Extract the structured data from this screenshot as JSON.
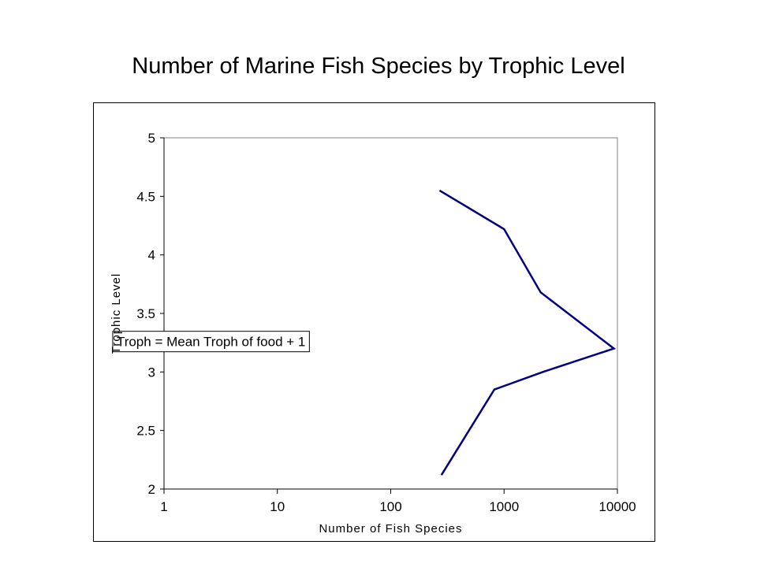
{
  "chart_data": {
    "type": "line",
    "title": "Number of Marine Fish Species by Trophic Level",
    "xlabel": "Number of Fish Species",
    "ylabel": "Trophic Level",
    "xscale": "log",
    "xlim": [
      1,
      10000
    ],
    "ylim": [
      2,
      5
    ],
    "xticks": [
      1,
      10,
      100,
      1000,
      10000
    ],
    "xtick_labels": [
      "1",
      "10",
      "100",
      "1000",
      "10000"
    ],
    "yticks": [
      2,
      2.5,
      3,
      3.5,
      4,
      4.5,
      5
    ],
    "ytick_labels": [
      "2",
      "2.5",
      "3",
      "3.5",
      "4",
      "4.5",
      "5"
    ],
    "grid": false,
    "legend": "none",
    "series": [
      {
        "color": "#000080",
        "points": [
          {
            "x": 280,
            "y": 2.12
          },
          {
            "x": 820,
            "y": 2.85
          },
          {
            "x": 2200,
            "y": 3.0
          },
          {
            "x": 9300,
            "y": 3.2
          },
          {
            "x": 2100,
            "y": 3.68
          },
          {
            "x": 1000,
            "y": 4.22
          },
          {
            "x": 270,
            "y": 4.55
          }
        ]
      }
    ],
    "annotations": [
      {
        "text": "Troph = Mean Troph of food + 1",
        "x": 2.6,
        "y": 3.26
      }
    ]
  }
}
